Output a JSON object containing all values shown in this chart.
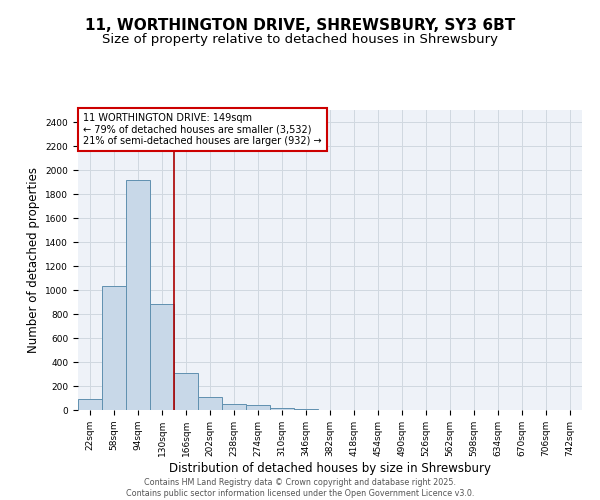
{
  "title_line1": "11, WORTHINGTON DRIVE, SHREWSBURY, SY3 6BT",
  "title_line2": "Size of property relative to detached houses in Shrewsbury",
  "xlabel": "Distribution of detached houses by size in Shrewsbury",
  "ylabel": "Number of detached properties",
  "categories": [
    "22sqm",
    "58sqm",
    "94sqm",
    "130sqm",
    "166sqm",
    "202sqm",
    "238sqm",
    "274sqm",
    "310sqm",
    "346sqm",
    "382sqm",
    "418sqm",
    "454sqm",
    "490sqm",
    "526sqm",
    "562sqm",
    "598sqm",
    "634sqm",
    "670sqm",
    "706sqm",
    "742sqm"
  ],
  "values": [
    90,
    1030,
    1920,
    880,
    310,
    110,
    50,
    40,
    20,
    10,
    0,
    0,
    0,
    0,
    0,
    0,
    0,
    0,
    0,
    0,
    0
  ],
  "bar_color": "#c8d8e8",
  "bar_edge_color": "#6090b0",
  "grid_color": "#d0d8e0",
  "background_color": "#eef2f8",
  "annotation_text": "11 WORTHINGTON DRIVE: 149sqm\n← 79% of detached houses are smaller (3,532)\n21% of semi-detached houses are larger (932) →",
  "annotation_box_color": "#cc0000",
  "red_line_color": "#aa0000",
  "ylim": [
    0,
    2500
  ],
  "yticks": [
    0,
    200,
    400,
    600,
    800,
    1000,
    1200,
    1400,
    1600,
    1800,
    2000,
    2200,
    2400
  ],
  "footer_line1": "Contains HM Land Registry data © Crown copyright and database right 2025.",
  "footer_line2": "Contains public sector information licensed under the Open Government Licence v3.0.",
  "title_fontsize": 11,
  "subtitle_fontsize": 9.5,
  "tick_fontsize": 6.5,
  "label_fontsize": 8.5,
  "annotation_fontsize": 7,
  "footer_fontsize": 5.8
}
